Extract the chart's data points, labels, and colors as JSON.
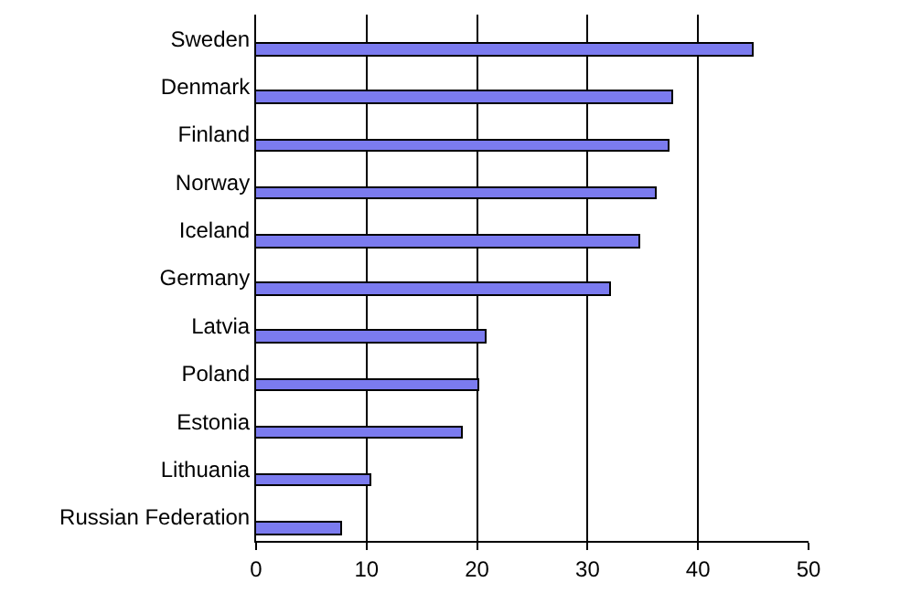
{
  "chart_data": {
    "type": "bar",
    "orientation": "horizontal",
    "categories": [
      "Sweden",
      "Denmark",
      "Finland",
      "Norway",
      "Iceland",
      "Germany",
      "Latvia",
      "Poland",
      "Estonia",
      "Lithuania",
      "Russian Federation"
    ],
    "values": [
      45.0,
      37.8,
      37.4,
      36.2,
      34.7,
      32.1,
      20.8,
      20.2,
      18.7,
      10.5,
      7.7
    ],
    "color": "#7b7bef",
    "xlim": [
      0,
      50
    ],
    "xticks": [
      0,
      10,
      20,
      30,
      40,
      50
    ],
    "grid": "x"
  }
}
